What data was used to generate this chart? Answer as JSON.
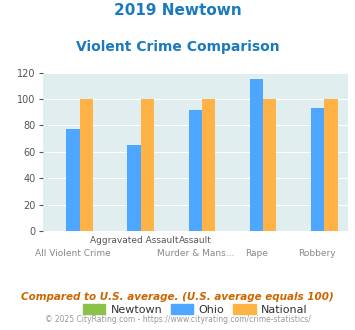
{
  "title_line1": "2019 Newtown",
  "title_line2": "Violent Crime Comparison",
  "newtown_values": [
    0,
    0,
    0,
    0,
    0
  ],
  "ohio_values": [
    77,
    65,
    92,
    115,
    93
  ],
  "national_values": [
    100,
    100,
    100,
    100,
    100
  ],
  "newtown_color": "#8bc34a",
  "ohio_color": "#4da6ff",
  "national_color": "#ffb347",
  "bg_color": "#e0eef0",
  "ylim": [
    0,
    120
  ],
  "yticks": [
    0,
    20,
    40,
    60,
    80,
    100,
    120
  ],
  "legend_labels": [
    "Newtown",
    "Ohio",
    "National"
  ],
  "top_xlabels": [
    "",
    "Aggravated Assault",
    "Assault",
    "",
    ""
  ],
  "bot_xlabels": [
    "All Violent Crime",
    "",
    "Murder & Mans...",
    "Rape",
    "Robbery"
  ],
  "footnote1": "Compared to U.S. average. (U.S. average equals 100)",
  "footnote2": "© 2025 CityRating.com - https://www.cityrating.com/crime-statistics/",
  "title_color": "#1a7abf",
  "footnote1_color": "#cc6600",
  "footnote2_color": "#999999",
  "footnote2_link_color": "#4da6ff"
}
